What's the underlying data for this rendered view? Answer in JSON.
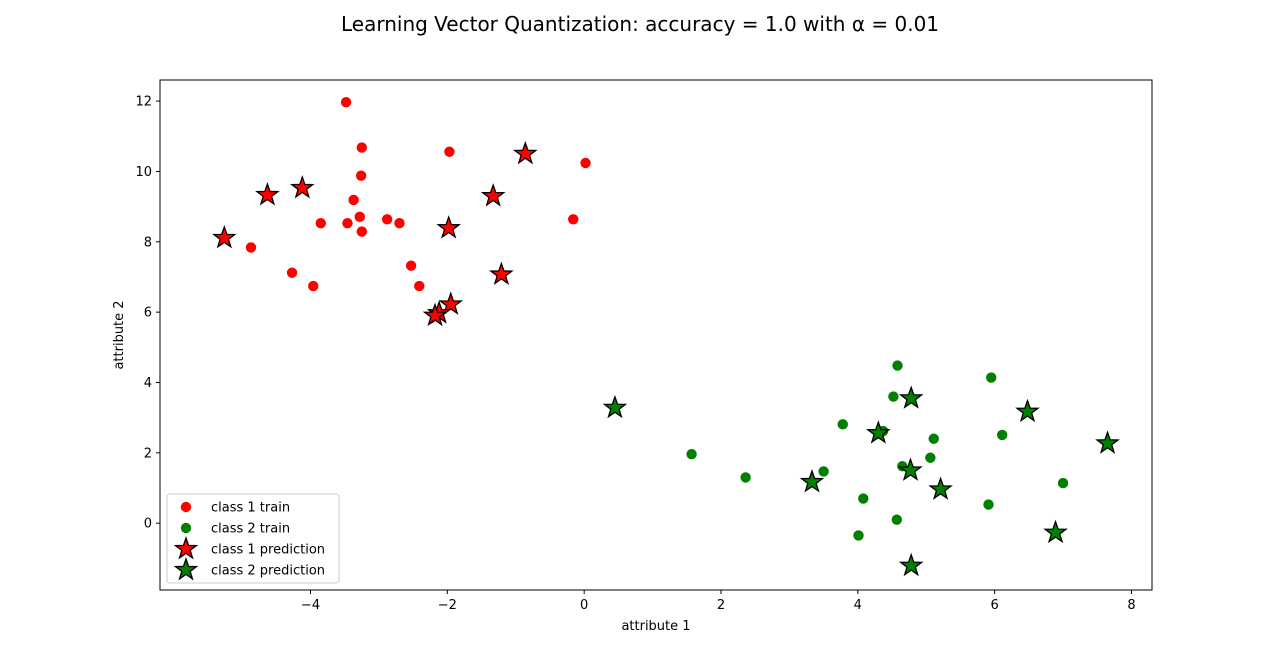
{
  "chart_data": {
    "type": "scatter",
    "title": "Learning Vector Quantization: accuracy = 1.0 with α = 0.01",
    "xlabel": "attribute 1",
    "ylabel": "attribute 2",
    "xlim": [
      -6.2,
      8.3
    ],
    "ylim": [
      -1.9,
      12.6
    ],
    "xticks": [
      -4,
      -2,
      0,
      2,
      4,
      6,
      8
    ],
    "yticks": [
      0,
      2,
      4,
      6,
      8,
      10,
      12
    ],
    "xtick_labels": [
      "−4",
      "−2",
      "0",
      "2",
      "4",
      "6",
      "8"
    ],
    "ytick_labels": [
      "0",
      "2",
      "4",
      "6",
      "8",
      "10",
      "12"
    ],
    "grid": false,
    "legend_position": "lower-left",
    "series": [
      {
        "name": "class 1 train",
        "marker": "circle",
        "color": "#ff0000",
        "points": [
          [
            -3.48,
            11.97
          ],
          [
            -3.25,
            10.68
          ],
          [
            -1.97,
            10.56
          ],
          [
            0.02,
            10.24
          ],
          [
            -3.26,
            9.88
          ],
          [
            -3.37,
            9.19
          ],
          [
            -3.85,
            8.53
          ],
          [
            -3.46,
            8.53
          ],
          [
            -3.28,
            8.71
          ],
          [
            -2.88,
            8.64
          ],
          [
            -2.7,
            8.53
          ],
          [
            -3.25,
            8.29
          ],
          [
            -0.16,
            8.64
          ],
          [
            -4.87,
            7.84
          ],
          [
            -4.27,
            7.12
          ],
          [
            -2.53,
            7.32
          ],
          [
            -3.96,
            6.74
          ],
          [
            -2.41,
            6.74
          ]
        ]
      },
      {
        "name": "class 2 train",
        "marker": "circle",
        "color": "#008000",
        "points": [
          [
            4.58,
            4.48
          ],
          [
            5.95,
            4.14
          ],
          [
            4.52,
            3.6
          ],
          [
            3.78,
            2.81
          ],
          [
            4.37,
            2.62
          ],
          [
            5.11,
            2.4
          ],
          [
            6.11,
            2.51
          ],
          [
            1.57,
            1.96
          ],
          [
            4.65,
            1.62
          ],
          [
            5.06,
            1.86
          ],
          [
            3.5,
            1.47
          ],
          [
            2.36,
            1.3
          ],
          [
            7.0,
            1.14
          ],
          [
            4.08,
            0.7
          ],
          [
            5.91,
            0.53
          ],
          [
            4.57,
            0.1
          ],
          [
            4.01,
            -0.35
          ]
        ]
      },
      {
        "name": "class 1 prediction",
        "marker": "star",
        "color": "#ff0000",
        "points": [
          [
            -0.86,
            10.5
          ],
          [
            -4.12,
            9.53
          ],
          [
            -4.63,
            9.33
          ],
          [
            -1.33,
            9.3
          ],
          [
            -1.98,
            8.39
          ],
          [
            -5.26,
            8.11
          ],
          [
            -1.21,
            7.07
          ],
          [
            -1.95,
            6.22
          ],
          [
            -2.12,
            5.97
          ],
          [
            -2.18,
            5.9
          ]
        ]
      },
      {
        "name": "class 2 prediction",
        "marker": "star",
        "color": "#008000",
        "points": [
          [
            4.78,
            3.55
          ],
          [
            0.45,
            3.28
          ],
          [
            6.48,
            3.17
          ],
          [
            4.3,
            2.56
          ],
          [
            7.65,
            2.27
          ],
          [
            4.77,
            1.5
          ],
          [
            3.33,
            1.17
          ],
          [
            5.21,
            0.96
          ],
          [
            6.89,
            -0.27
          ],
          [
            4.78,
            -1.21
          ]
        ]
      }
    ]
  }
}
